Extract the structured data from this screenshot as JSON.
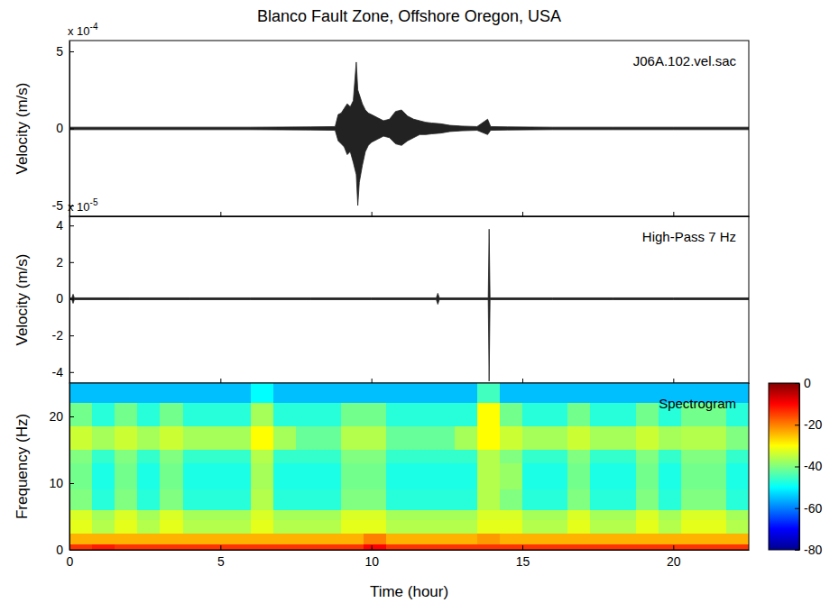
{
  "chart_data": [
    {
      "type": "waveform",
      "title": "Blanco Fault Zone, Offshore Oregon, USA",
      "ylabel": "Velocity (m/s)",
      "y_multiplier": {
        "base": "x 10",
        "exponent": "-4"
      },
      "label": "J06A.102.vel.sac",
      "xlim": [
        0,
        22.5
      ],
      "xticks": [
        0,
        5,
        10,
        15,
        20
      ],
      "ylim": [
        -5.7,
        5.7
      ],
      "yticks": [
        -5,
        0,
        5
      ],
      "tick_labels": "y",
      "color": "#222222",
      "x": [
        0,
        2,
        4,
        6,
        8,
        8.8,
        8.9,
        9,
        9.1,
        9.2,
        9.3,
        9.4,
        9.5,
        9.55,
        9.6,
        9.7,
        9.8,
        9.9,
        10,
        10.2,
        10.4,
        10.6,
        10.8,
        11,
        11.2,
        11.4,
        11.6,
        11.8,
        12,
        12.3,
        12.6,
        13,
        13.5,
        13.85,
        13.95,
        14.5,
        16,
        18,
        20,
        22.5
      ],
      "upper": [
        0.08,
        0.08,
        0.08,
        0.08,
        0.1,
        0.12,
        0.9,
        1.0,
        1.3,
        1.6,
        1.4,
        1.8,
        4.3,
        2.5,
        2.2,
        1.6,
        1.2,
        1.0,
        0.9,
        0.7,
        0.5,
        0.6,
        1.1,
        1.2,
        0.8,
        0.6,
        0.5,
        0.4,
        0.35,
        0.3,
        0.2,
        0.15,
        0.12,
        0.6,
        0.12,
        0.1,
        0.08,
        0.08,
        0.08,
        0.08
      ],
      "lower": [
        -0.08,
        -0.08,
        -0.08,
        -0.08,
        -0.1,
        -0.12,
        -0.8,
        -1.0,
        -1.2,
        -1.7,
        -1.5,
        -2.2,
        -3.0,
        -5.0,
        -3.5,
        -2.4,
        -1.5,
        -1.1,
        -0.9,
        -0.7,
        -0.5,
        -0.6,
        -1.0,
        -1.1,
        -0.8,
        -0.6,
        -0.4,
        -0.4,
        -0.35,
        -0.3,
        -0.2,
        -0.15,
        -0.12,
        -0.4,
        -0.12,
        -0.1,
        -0.08,
        -0.08,
        -0.08,
        -0.08
      ]
    },
    {
      "type": "waveform",
      "ylabel": "Velocity (m/s)",
      "y_multiplier": {
        "base": "x 10",
        "exponent": "-5"
      },
      "label": "High-Pass 7 Hz",
      "xlim": [
        0,
        22.5
      ],
      "xticks": [
        0,
        5,
        10,
        15,
        20
      ],
      "ylim": [
        -4.6,
        4.5
      ],
      "yticks": [
        -4,
        -2,
        0,
        2,
        4
      ],
      "tick_labels": "y",
      "color": "#222222",
      "x": [
        0,
        0.08,
        0.12,
        0.16,
        2,
        4,
        6,
        8,
        10,
        12.15,
        12.2,
        12.25,
        13.87,
        13.9,
        13.93,
        16,
        18,
        20,
        22.5
      ],
      "upper": [
        0.05,
        0.05,
        0.25,
        0.05,
        0.05,
        0.05,
        0.05,
        0.05,
        0.05,
        0.05,
        0.3,
        0.05,
        0.05,
        3.8,
        0.05,
        0.05,
        0.05,
        0.05,
        0.05
      ],
      "lower": [
        -0.05,
        -0.05,
        -0.25,
        -0.05,
        -0.05,
        -0.05,
        -0.05,
        -0.05,
        -0.05,
        -0.05,
        -0.3,
        -0.05,
        -0.05,
        -4.5,
        -0.05,
        -0.05,
        -0.05,
        -0.05,
        -0.05
      ]
    },
    {
      "type": "heatmap",
      "label": "Spectrogram",
      "ylabel": "Frequency (Hz)",
      "xlabel": "Time (hour)",
      "xlim": [
        0,
        22.5
      ],
      "xticks": [
        0,
        5,
        10,
        15,
        20
      ],
      "ylim": [
        0,
        25
      ],
      "yticks": [
        0,
        10,
        20
      ],
      "color": "jet",
      "color_range": [
        -80,
        0
      ],
      "color_ticks": [
        0,
        -20,
        -40,
        -60,
        -80
      ],
      "time_edges": [
        0,
        0.75,
        1.5,
        2.25,
        3,
        3.75,
        4.5,
        5.25,
        6,
        6.75,
        7.5,
        8.25,
        9,
        9.75,
        10.5,
        11.25,
        12,
        12.75,
        13.5,
        14.25,
        15,
        15.75,
        16.5,
        17.25,
        18,
        18.75,
        19.5,
        20.25,
        21,
        21.75,
        22.5
      ],
      "freq_edges": [
        0,
        0.8,
        2.5,
        4.5,
        6,
        9,
        13,
        15,
        18.5,
        22,
        25
      ],
      "cells": [
        [
          -14,
          -12,
          -14,
          -14,
          -14,
          -14,
          -14,
          -14,
          -14,
          -14,
          -14,
          -14,
          -14,
          -10,
          -14,
          -14,
          -14,
          -14,
          -14,
          -14,
          -14,
          -14,
          -14,
          -14,
          -14,
          -14,
          -14,
          -14,
          -14,
          -14
        ],
        [
          -24,
          -24,
          -24,
          -24,
          -24,
          -24,
          -24,
          -24,
          -24,
          -24,
          -24,
          -24,
          -24,
          -20,
          -24,
          -24,
          -24,
          -24,
          -22,
          -24,
          -24,
          -24,
          -24,
          -24,
          -24,
          -24,
          -24,
          -24,
          -24,
          -24
        ],
        [
          -32,
          -36,
          -32,
          -36,
          -32,
          -36,
          -36,
          -36,
          -32,
          -36,
          -36,
          -36,
          -32,
          -32,
          -36,
          -36,
          -36,
          -36,
          -32,
          -32,
          -36,
          -36,
          -32,
          -36,
          -36,
          -32,
          -36,
          -32,
          -32,
          -36
        ],
        [
          -33,
          -37,
          -33,
          -37,
          -33,
          -37,
          -37,
          -37,
          -33,
          -37,
          -37,
          -37,
          -33,
          -33,
          -37,
          -37,
          -37,
          -37,
          -33,
          -33,
          -37,
          -37,
          -33,
          -37,
          -37,
          -33,
          -37,
          -33,
          -33,
          -37
        ],
        [
          -40,
          -47,
          -40,
          -47,
          -40,
          -47,
          -47,
          -47,
          -36,
          -47,
          -47,
          -47,
          -40,
          -40,
          -47,
          -47,
          -47,
          -47,
          -36,
          -40,
          -47,
          -47,
          -40,
          -47,
          -47,
          -40,
          -47,
          -40,
          -40,
          -47
        ],
        [
          -41,
          -48,
          -41,
          -48,
          -41,
          -48,
          -48,
          -48,
          -37,
          -48,
          -48,
          -48,
          -41,
          -41,
          -48,
          -48,
          -48,
          -48,
          -36,
          -38,
          -48,
          -48,
          -41,
          -48,
          -48,
          -41,
          -48,
          -41,
          -41,
          -48
        ],
        [
          -40,
          -46,
          -40,
          -46,
          -40,
          -46,
          -46,
          -46,
          -36,
          -46,
          -46,
          -46,
          -40,
          -40,
          -46,
          -46,
          -46,
          -46,
          -36,
          -40,
          -46,
          -46,
          -40,
          -46,
          -46,
          -40,
          -46,
          -40,
          -40,
          -46
        ],
        [
          -34,
          -37,
          -34,
          -37,
          -34,
          -37,
          -37,
          -37,
          -30,
          -37,
          -42,
          -42,
          -36,
          -36,
          -42,
          -42,
          -42,
          -37,
          -30,
          -34,
          -37,
          -37,
          -34,
          -37,
          -37,
          -34,
          -37,
          -36,
          -36,
          -40
        ],
        [
          -41,
          -47,
          -41,
          -47,
          -41,
          -47,
          -47,
          -47,
          -37,
          -47,
          -47,
          -47,
          -41,
          -41,
          -47,
          -47,
          -47,
          -47,
          -30,
          -41,
          -47,
          -47,
          -41,
          -47,
          -47,
          -41,
          -47,
          -41,
          -41,
          -47
        ],
        [
          -55,
          -55,
          -55,
          -55,
          -55,
          -55,
          -55,
          -55,
          -50,
          -55,
          -55,
          -55,
          -55,
          -55,
          -55,
          -55,
          -55,
          -55,
          -45,
          -55,
          -55,
          -55,
          -55,
          -55,
          -55,
          -55,
          -55,
          -55,
          -55,
          -55
        ]
      ]
    }
  ]
}
